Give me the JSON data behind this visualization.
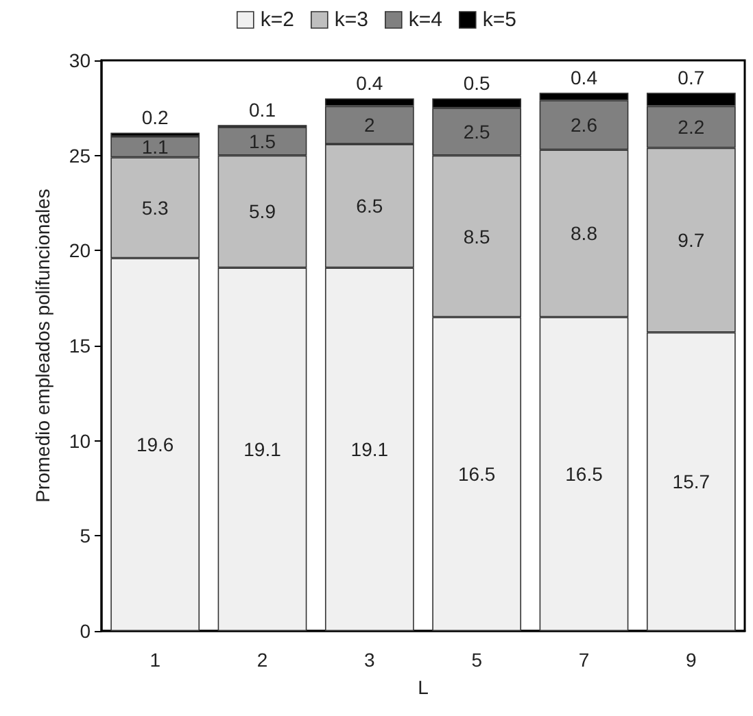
{
  "chart_data": {
    "type": "bar",
    "stacked": true,
    "xlabel": "L",
    "ylabel": "Promedio empleados polifuncionales",
    "categories": [
      "1",
      "2",
      "3",
      "5",
      "7",
      "9"
    ],
    "series": [
      {
        "name": "k=2",
        "color": "#f0f0f0",
        "values": [
          19.6,
          19.1,
          19.1,
          16.5,
          16.5,
          15.7
        ]
      },
      {
        "name": "k=3",
        "color": "#bfbfbf",
        "values": [
          5.3,
          5.9,
          6.5,
          8.5,
          8.8,
          9.7
        ]
      },
      {
        "name": "k=4",
        "color": "#808080",
        "values": [
          1.1,
          1.5,
          2,
          2.5,
          2.6,
          2.2
        ]
      },
      {
        "name": "k=5",
        "color": "#000000",
        "values": [
          0.2,
          0.1,
          0.4,
          0.5,
          0.4,
          0.7
        ]
      }
    ],
    "ylim": [
      0,
      30
    ],
    "yticks": [
      0,
      5,
      10,
      15,
      20,
      25,
      30
    ],
    "grid": false,
    "legend": "top",
    "data_labels": true
  }
}
